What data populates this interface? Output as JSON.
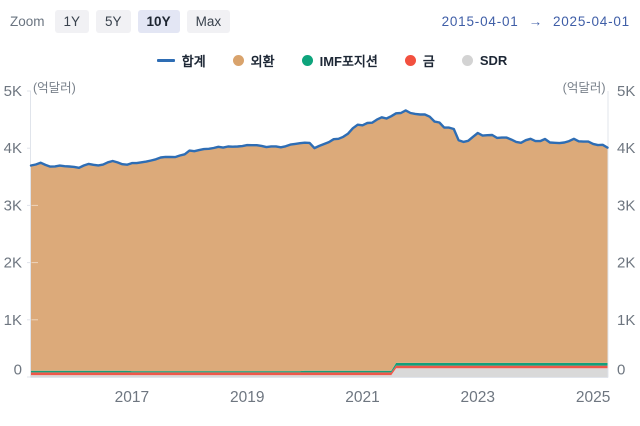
{
  "zoom_controls": {
    "label": "Zoom",
    "active_option": "10Y",
    "options": [
      {
        "label": "1Y",
        "active": false
      },
      {
        "label": "5Y",
        "active": false
      },
      {
        "label": "10Y",
        "active": true
      },
      {
        "label": "Max",
        "active": false
      }
    ]
  },
  "date_range": {
    "start": "2015-04-01",
    "arrow": "→",
    "end": "2025-04-01"
  },
  "legend": {
    "items": [
      {
        "label": "합계",
        "marker": "line",
        "color": "#2e6db4"
      },
      {
        "label": "외환",
        "marker": "circle",
        "color": "#d9a36c"
      },
      {
        "label": "IMF포지션",
        "marker": "circle",
        "color": "#0ea47c"
      },
      {
        "label": "금",
        "marker": "circle",
        "color": "#f2503f"
      },
      {
        "label": "SDR",
        "marker": "circle",
        "color": "#d3d3d3"
      }
    ]
  },
  "chart_data": {
    "type": "area",
    "stacked": true,
    "unit_label": "(억달러)",
    "x_start": "2015-04",
    "x_end": "2025-04",
    "interval": "monthly",
    "points_per_series": 121,
    "ylim": [
      0,
      5000
    ],
    "grid": "off",
    "axis_text_color": "#6e7680",
    "axis_line_color": "#e0e4eb",
    "x_ticks": [
      {
        "label": "2017",
        "index": 21
      },
      {
        "label": "2019",
        "index": 45
      },
      {
        "label": "2021",
        "index": 69
      },
      {
        "label": "2023",
        "index": 93
      },
      {
        "label": "2025",
        "index": 117
      }
    ],
    "y_ticks": [
      {
        "label": "0",
        "value": 0
      },
      {
        "label": "1K",
        "value": 1000
      },
      {
        "label": "2K",
        "value": 2000
      },
      {
        "label": "3K",
        "value": 3000
      },
      {
        "label": "4K",
        "value": 4000
      },
      {
        "label": "5K",
        "value": 5000
      }
    ],
    "line_series": {
      "name": "합계",
      "key": "total",
      "color": "#2e6db4",
      "values": [
        3698,
        3715,
        3747,
        3708,
        3679,
        3681,
        3696,
        3685,
        3680,
        3673,
        3658,
        3698,
        3725,
        3709,
        3699,
        3714,
        3754,
        3777,
        3751,
        3720,
        3711,
        3740,
        3739,
        3753,
        3766,
        3785,
        3806,
        3838,
        3848,
        3847,
        3845,
        3872,
        3893,
        3958,
        3948,
        3967,
        3984,
        3989,
        4003,
        4024,
        4011,
        4030,
        4027,
        4030,
        4037,
        4055,
        4052,
        4053,
        4040,
        4020,
        4031,
        4031,
        4015,
        4033,
        4063,
        4075,
        4088,
        4097,
        4092,
        4002,
        4040,
        4073,
        4107,
        4158,
        4165,
        4200,
        4255,
        4350,
        4410,
        4400,
        4440,
        4446,
        4500,
        4540,
        4520,
        4560,
        4610,
        4615,
        4660,
        4615,
        4600,
        4590,
        4590,
        4550,
        4465,
        4450,
        4360,
        4360,
        4335,
        4140,
        4110,
        4130,
        4200,
        4265,
        4220,
        4228,
        4230,
        4180,
        4185,
        4185,
        4150,
        4110,
        4095,
        4140,
        4165,
        4125,
        4125,
        4160,
        4100,
        4095,
        4090,
        4100,
        4125,
        4165,
        4120,
        4115,
        4115,
        4075,
        4055,
        4060,
        4010
      ]
    },
    "stack_series": [
      {
        "name": "SDR",
        "key": "sdr",
        "color": "#d9d9d9",
        "segments": [
          {
            "from": 0,
            "to": 75,
            "value": 33
          },
          {
            "from": 76,
            "to": 120,
            "value": 152
          }
        ]
      },
      {
        "name": "금",
        "key": "gold",
        "color": "#ee584a",
        "segments": [
          {
            "from": 0,
            "to": 120,
            "value": 48
          }
        ]
      },
      {
        "name": "IMF포지션",
        "key": "imf-position",
        "color": "#12a07b",
        "segments": [
          {
            "from": 0,
            "to": 20,
            "value": 30
          },
          {
            "from": 21,
            "to": 56,
            "value": 22
          },
          {
            "from": 57,
            "to": 75,
            "value": 30
          },
          {
            "from": 76,
            "to": 120,
            "value": 46
          }
        ]
      },
      {
        "name": "외환",
        "key": "forex",
        "color": "#dcaa7a",
        "values": [
          3587,
          3604,
          3636,
          3597,
          3568,
          3570,
          3585,
          3574,
          3569,
          3562,
          3547,
          3587,
          3614,
          3598,
          3588,
          3603,
          3643,
          3666,
          3640,
          3609,
          3600,
          3637,
          3636,
          3650,
          3663,
          3682,
          3703,
          3735,
          3745,
          3744,
          3742,
          3769,
          3790,
          3855,
          3845,
          3864,
          3881,
          3886,
          3900,
          3921,
          3908,
          3927,
          3924,
          3927,
          3934,
          3952,
          3949,
          3950,
          3937,
          3917,
          3928,
          3928,
          3912,
          3930,
          3960,
          3972,
          3985,
          3986,
          3981,
          3891,
          3929,
          3962,
          3996,
          4047,
          4054,
          4089,
          4144,
          4239,
          4299,
          4289,
          4329,
          4335,
          4389,
          4429,
          4409,
          4449,
          4364,
          4369,
          4414,
          4369,
          4354,
          4344,
          4344,
          4304,
          4219,
          4204,
          4114,
          4114,
          4089,
          3894,
          3864,
          3884,
          3954,
          4019,
          3974,
          3982,
          3984,
          3934,
          3939,
          3939,
          3904,
          3864,
          3849,
          3894,
          3919,
          3879,
          3879,
          3914,
          3854,
          3849,
          3844,
          3854,
          3879,
          3919,
          3874,
          3869,
          3869,
          3829,
          3809,
          3814,
          3764
        ]
      }
    ]
  }
}
